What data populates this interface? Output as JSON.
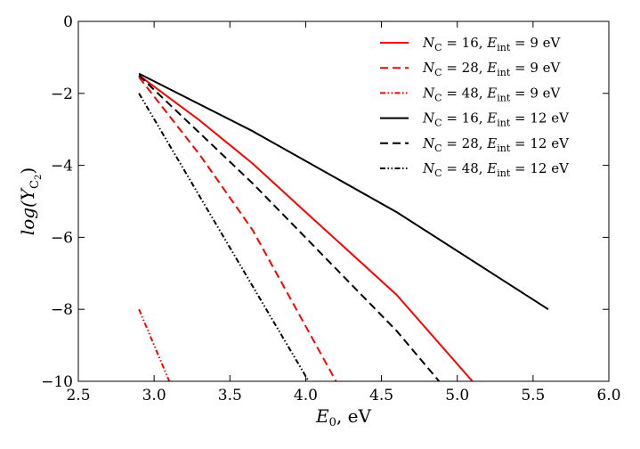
{
  "chart_data": {
    "type": "line",
    "title": "",
    "xlabel": "E0, eV",
    "xlabel_main": "E",
    "xlabel_sub": "0",
    "xlabel_unit": ",  eV",
    "ylabel": "log(Y_C2)",
    "ylabel_main": "log(Y",
    "ylabel_sub": "C",
    "ylabel_subsub": "2",
    "ylabel_close": ")",
    "xlim": [
      2.5,
      6.0
    ],
    "ylim": [
      -10,
      0
    ],
    "xticks": [
      {
        "v": 2.5,
        "label": "2.5"
      },
      {
        "v": 3.0,
        "label": "3.0"
      },
      {
        "v": 3.5,
        "label": "3.5"
      },
      {
        "v": 4.0,
        "label": "4.0"
      },
      {
        "v": 4.5,
        "label": "4.5"
      },
      {
        "v": 5.0,
        "label": "5.0"
      },
      {
        "v": 5.5,
        "label": "5.5"
      },
      {
        "v": 6.0,
        "label": "6.0"
      }
    ],
    "yticks": [
      {
        "v": 0,
        "label": "0"
      },
      {
        "v": -2,
        "label": "−2"
      },
      {
        "v": -4,
        "label": "−4"
      },
      {
        "v": -6,
        "label": "−6"
      },
      {
        "v": -8,
        "label": "−8"
      },
      {
        "v": -10,
        "label": "−10"
      }
    ],
    "grid": false,
    "legend_position": "top-right",
    "series": [
      {
        "name": "N_C = 16, E_int = 9 eV",
        "nc": "16",
        "eint": "9",
        "color": "#ff0000",
        "dash": "solid",
        "x": [
          2.9,
          3.3,
          3.65,
          4.0,
          4.6,
          5.1
        ],
        "y": [
          -1.5,
          -2.75,
          -3.95,
          -5.3,
          -7.6,
          -10.0
        ]
      },
      {
        "name": "N_C = 28, E_int = 9 eV",
        "nc": "28",
        "eint": "9",
        "color": "#ff0000",
        "dash": "dashed",
        "x": [
          2.9,
          3.3,
          3.65,
          4.2
        ],
        "y": [
          -1.55,
          -3.7,
          -5.8,
          -10.0
        ]
      },
      {
        "name": "N_C = 48, E_int = 9 eV",
        "nc": "48",
        "eint": "9",
        "color": "#ff0000",
        "dash": "dashdotdot",
        "x": [
          2.9,
          3.1
        ],
        "y": [
          -8.0,
          -10.0
        ]
      },
      {
        "name": "N_C = 16, E_int = 12 eV",
        "nc": "16",
        "eint": "12",
        "color": "#000000",
        "dash": "solid",
        "x": [
          2.9,
          3.65,
          4.6,
          5.6
        ],
        "y": [
          -1.45,
          -3.05,
          -5.3,
          -8.0
        ]
      },
      {
        "name": "N_C = 28, E_int = 12 eV",
        "nc": "28",
        "eint": "12",
        "color": "#000000",
        "dash": "dashed",
        "x": [
          2.9,
          3.65,
          4.6,
          4.88
        ],
        "y": [
          -1.5,
          -4.5,
          -8.6,
          -10.0
        ]
      },
      {
        "name": "N_C = 48, E_int = 12 eV",
        "nc": "48",
        "eint": "12",
        "color": "#000000",
        "dash": "dashdotdot",
        "x": [
          2.9,
          4.02
        ],
        "y": [
          -2.0,
          -10.0
        ]
      }
    ],
    "legend_symbols": {
      "n": "N",
      "n_sub": "C",
      "e": "E",
      "e_sub": "int",
      "unit": "eV"
    }
  }
}
